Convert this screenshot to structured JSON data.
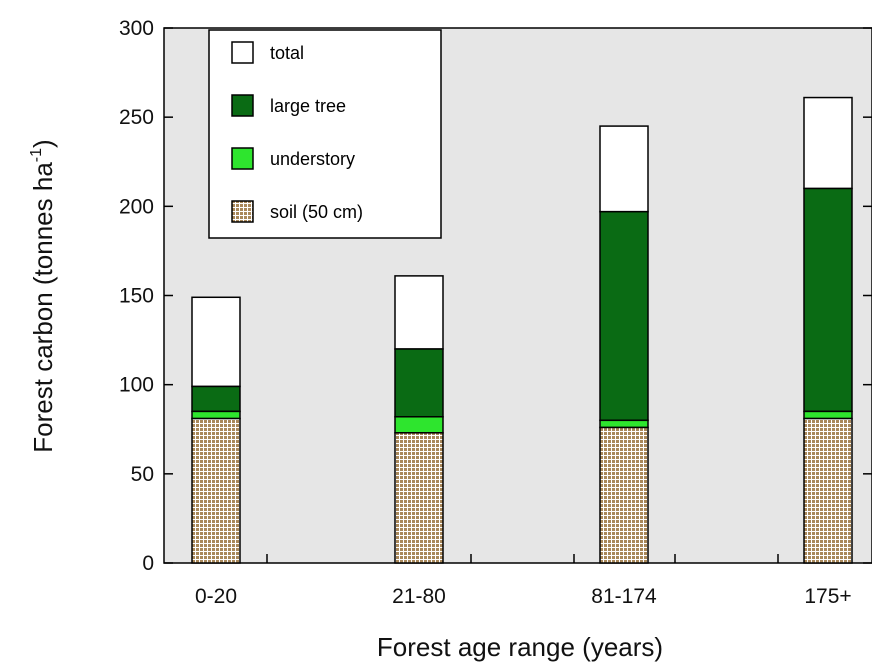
{
  "chart_data": {
    "type": "bar",
    "stacked": true,
    "categories": [
      "0-20",
      "21-80",
      "81-174",
      "175+"
    ],
    "series": [
      {
        "name": "soil (50 cm)",
        "color": "#b89a6c",
        "pattern": "dotted-grid",
        "values": [
          81,
          73,
          76,
          81
        ]
      },
      {
        "name": "understory",
        "color": "#2ee52e",
        "values": [
          4,
          9,
          4,
          4
        ]
      },
      {
        "name": "large tree",
        "color": "#0a6b14",
        "values": [
          14,
          38,
          117,
          125
        ]
      },
      {
        "name": "total",
        "color": "#ffffff",
        "values": [
          149,
          161,
          245,
          261
        ]
      }
    ],
    "legend_order": [
      "total",
      "large tree",
      "understory",
      "soil (50 cm)"
    ],
    "ylim": [
      0,
      300
    ],
    "yticks": [
      0,
      50,
      100,
      150,
      200,
      250,
      300
    ],
    "xlabel": "Forest age range (years)",
    "ylabel": {
      "main": "Forest carbon (tonnes ha",
      "superscript": "-1",
      "close": ")"
    },
    "legend_position": "top-left",
    "plot_background": "#e6e6e6"
  }
}
